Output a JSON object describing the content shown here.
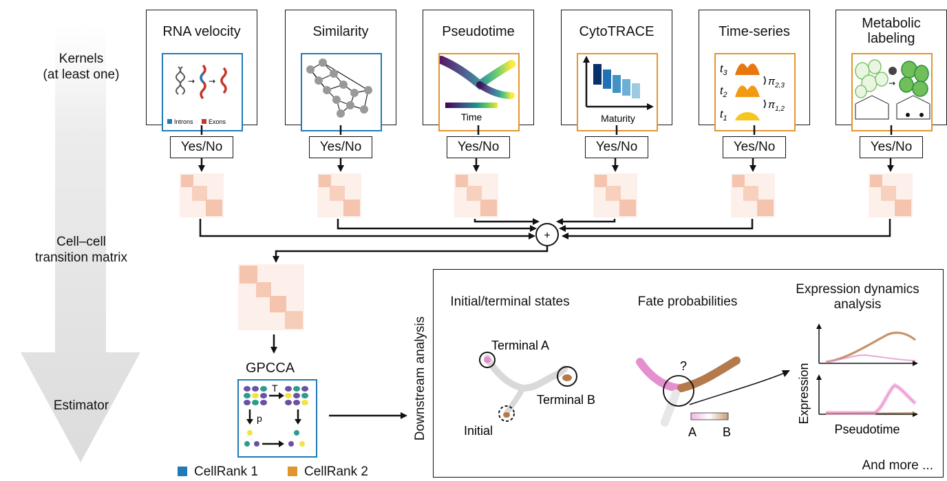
{
  "rows": {
    "kernels": [
      "Kernels",
      "(at least one)"
    ],
    "transition": [
      "Cell–cell",
      "transition matrix"
    ],
    "estimator": "Estimator"
  },
  "kernels": [
    {
      "title": [
        "RNA velocity"
      ],
      "legend_introns": "Introns",
      "legend_exons": "Exons",
      "version": "CellRank 1"
    },
    {
      "title": [
        "Similarity"
      ],
      "version": "CellRank 1"
    },
    {
      "title": [
        "Pseudotime"
      ],
      "caption": "Time",
      "version": "CellRank 2"
    },
    {
      "title": [
        "CytoTRACE"
      ],
      "caption": "Maturity",
      "version": "CellRank 2"
    },
    {
      "title": [
        "Time-series"
      ],
      "version": "CellRank 2"
    },
    {
      "title": [
        "Metabolic",
        "labeling"
      ],
      "version": "CellRank 2"
    }
  ],
  "timeseries_labels": {
    "t3": "t",
    "t3_sub": "3",
    "t2": "t",
    "t2_sub": "2",
    "t1": "t",
    "t1_sub": "1",
    "pi23": "π",
    "pi23_sub": "2,3",
    "pi12": "π",
    "pi12_sub": "1,2"
  },
  "yes_no_label": "Yes/No",
  "combine_symbol": "+",
  "estimator": {
    "name": "GPCCA",
    "t_label": "T",
    "p_label": "p"
  },
  "legend": [
    {
      "label": "CellRank 1",
      "color": "#1f7ab5"
    },
    {
      "label": "CellRank 2",
      "color": "#e2952d"
    }
  ],
  "downstream": {
    "label": "Downstream analysis",
    "initial_terminal": {
      "title": "Initial/terminal states",
      "terminal_a": "Terminal A",
      "terminal_b": "Terminal B",
      "initial": "Initial"
    },
    "fate": {
      "title": "Fate probabilities",
      "question": "?",
      "a": "A",
      "b": "B"
    },
    "expression": {
      "title": [
        "Expression dynamics",
        "analysis"
      ],
      "ylabel": "Expression",
      "xlabel": "Pseudotime"
    },
    "more": "And more ..."
  },
  "colors": {
    "cr1": "#1f7ab5",
    "cr2": "#e2952d",
    "matrix": "#f3b9a1",
    "pink": "#e58fcf",
    "brown": "#b47a4b"
  }
}
